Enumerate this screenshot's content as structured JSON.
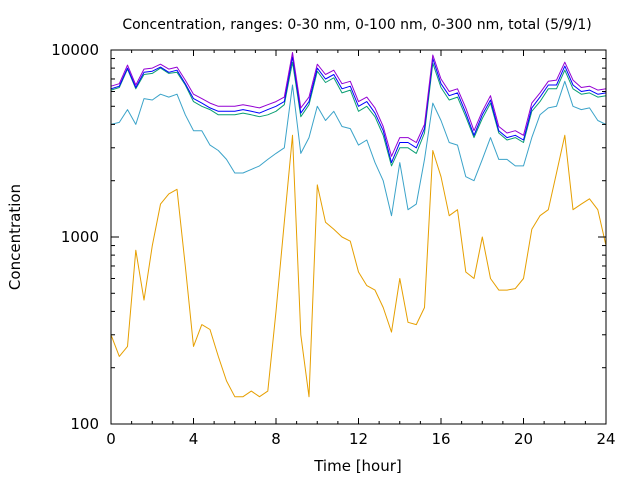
{
  "chart_data": {
    "type": "line",
    "title": "Concentration, ranges: 0-30 nm, 0-100 nm, 0-300 nm, total (5/9/1)",
    "xlabel": "Time [hour]",
    "ylabel": "Concentration",
    "xlim": [
      0,
      24
    ],
    "ylim": [
      100,
      10000
    ],
    "y_scale": "log",
    "grid": false,
    "legend": "none",
    "x_ticks": [
      0,
      4,
      8,
      12,
      16,
      20,
      24
    ],
    "x_tick_labels": [
      "0",
      "4",
      "8",
      "12",
      "16",
      "20",
      "24"
    ],
    "y_ticks": [
      100,
      1000,
      10000
    ],
    "y_tick_labels": [
      "100",
      "1000",
      "10000"
    ],
    "x": [
      0,
      0.4,
      0.8,
      1.2,
      1.6,
      2,
      2.4,
      2.8,
      3.2,
      3.6,
      4,
      4.4,
      4.8,
      5.2,
      5.6,
      6,
      6.4,
      6.8,
      7.2,
      7.6,
      8,
      8.4,
      8.8,
      9.2,
      9.6,
      10,
      10.4,
      10.8,
      11.2,
      11.6,
      12,
      12.4,
      12.8,
      13.2,
      13.6,
      14,
      14.4,
      14.8,
      15.2,
      15.6,
      16,
      16.4,
      16.8,
      17.2,
      17.6,
      18,
      18.4,
      18.8,
      19.2,
      19.6,
      20,
      20.4,
      20.8,
      21.2,
      21.6,
      22,
      22.4,
      22.8,
      23.2,
      23.6,
      24
    ],
    "series": [
      {
        "color": "#e69f00",
        "values": [
          300,
          230,
          260,
          850,
          460,
          900,
          1500,
          1700,
          1800,
          700,
          260,
          340,
          320,
          230,
          170,
          140,
          140,
          150,
          140,
          150,
          400,
          1200,
          3500,
          300,
          140,
          1900,
          1200,
          1100,
          1000,
          950,
          650,
          550,
          520,
          420,
          310,
          600,
          350,
          340,
          420,
          2900,
          2100,
          1300,
          1400,
          650,
          600,
          1000,
          600,
          520,
          520,
          530,
          600,
          1100,
          1300,
          1400,
          2200,
          3500,
          1400,
          1500,
          1600,
          1400,
          900
        ]
      },
      {
        "color": "#3ba3c9",
        "values": [
          4000,
          4100,
          4800,
          4000,
          5500,
          5400,
          5800,
          5600,
          5800,
          4500,
          3700,
          3700,
          3100,
          2900,
          2600,
          2200,
          2200,
          2300,
          2400,
          2600,
          2800,
          3000,
          6500,
          2800,
          3400,
          5000,
          4200,
          4700,
          3900,
          3800,
          3100,
          3300,
          2500,
          2000,
          1300,
          2500,
          1400,
          1500,
          2600,
          5200,
          4200,
          3200,
          3100,
          2100,
          2000,
          2600,
          3400,
          2600,
          2600,
          2400,
          2400,
          3400,
          4500,
          4900,
          5000,
          6800,
          5000,
          4800,
          4900,
          4200,
          4000
        ]
      },
      {
        "color": "#0a9e73",
        "values": [
          6100,
          6300,
          7900,
          6200,
          7400,
          7500,
          8000,
          7500,
          7600,
          6500,
          5300,
          5000,
          4800,
          4500,
          4500,
          4500,
          4600,
          4500,
          4400,
          4500,
          4700,
          5100,
          8600,
          4400,
          5100,
          7700,
          6700,
          7100,
          5900,
          6100,
          4700,
          5000,
          4400,
          3500,
          2400,
          3000,
          3000,
          2800,
          3600,
          8500,
          6300,
          5400,
          5600,
          4400,
          3400,
          4300,
          5200,
          3600,
          3300,
          3400,
          3200,
          4700,
          5300,
          6200,
          6200,
          7800,
          6200,
          5800,
          5900,
          5600,
          5700
        ]
      },
      {
        "color": "#0000ff",
        "values": [
          6200,
          6400,
          8000,
          6300,
          7600,
          7700,
          8100,
          7600,
          7800,
          6600,
          5500,
          5200,
          4900,
          4700,
          4700,
          4700,
          4800,
          4700,
          4600,
          4800,
          5000,
          5300,
          9200,
          4600,
          5300,
          8000,
          7000,
          7400,
          6200,
          6400,
          5000,
          5300,
          4600,
          3700,
          2500,
          3200,
          3200,
          3000,
          3800,
          9000,
          6600,
          5700,
          5900,
          4600,
          3500,
          4500,
          5400,
          3700,
          3400,
          3500,
          3300,
          4900,
          5600,
          6500,
          6500,
          8200,
          6500,
          6000,
          6100,
          5800,
          5900
        ]
      },
      {
        "color": "#9400d3",
        "values": [
          6400,
          6600,
          8300,
          6500,
          7900,
          8000,
          8400,
          7900,
          8100,
          6900,
          5800,
          5500,
          5200,
          5000,
          5000,
          5000,
          5100,
          5000,
          4900,
          5100,
          5300,
          5600,
          9700,
          4900,
          5600,
          8400,
          7400,
          7800,
          6600,
          6800,
          5300,
          5600,
          4900,
          3900,
          2700,
          3400,
          3400,
          3200,
          4000,
          9400,
          7000,
          6000,
          6200,
          4900,
          3700,
          4700,
          5700,
          3900,
          3600,
          3700,
          3500,
          5200,
          5900,
          6800,
          6900,
          8600,
          6900,
          6300,
          6400,
          6100,
          6200
        ]
      }
    ]
  }
}
